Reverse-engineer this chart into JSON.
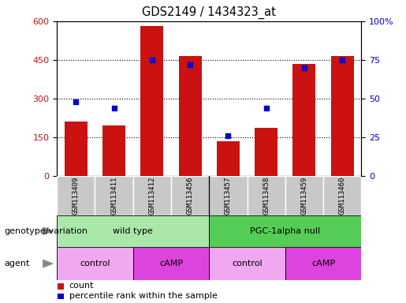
{
  "title": "GDS2149 / 1434323_at",
  "samples": [
    "GSM113409",
    "GSM113411",
    "GSM113412",
    "GSM113456",
    "GSM113457",
    "GSM113458",
    "GSM113459",
    "GSM113460"
  ],
  "counts": [
    210,
    195,
    580,
    465,
    135,
    185,
    435,
    465
  ],
  "percentile_ranks": [
    48,
    44,
    75,
    72,
    26,
    44,
    70,
    75
  ],
  "ylim_left": [
    0,
    600
  ],
  "ylim_right": [
    0,
    100
  ],
  "yticks_left": [
    0,
    150,
    300,
    450,
    600
  ],
  "yticks_right": [
    0,
    25,
    50,
    75,
    100
  ],
  "ytick_labels_right": [
    "0",
    "25",
    "50",
    "75",
    "100%"
  ],
  "bar_color": "#cc1111",
  "dot_color": "#0000cc",
  "tick_label_bg": "#c8c8c8",
  "genotype_groups": [
    {
      "label": "wild type",
      "start": 0,
      "end": 4,
      "color": "#aae8aa"
    },
    {
      "label": "PGC-1alpha null",
      "start": 4,
      "end": 8,
      "color": "#55cc55"
    }
  ],
  "agent_groups": [
    {
      "label": "control",
      "start": 0,
      "end": 2,
      "color": "#f0a8f0"
    },
    {
      "label": "cAMP",
      "start": 2,
      "end": 4,
      "color": "#dd44dd"
    },
    {
      "label": "control",
      "start": 4,
      "end": 6,
      "color": "#f0a8f0"
    },
    {
      "label": "cAMP",
      "start": 6,
      "end": 8,
      "color": "#dd44dd"
    }
  ],
  "legend_count_color": "#cc1111",
  "legend_dot_color": "#0000cc",
  "legend_count_label": "count",
  "legend_dot_label": "percentile rank within the sample",
  "left_label": "genotype/variation",
  "agent_label": "agent",
  "grid_yticks": [
    150,
    300,
    450
  ],
  "hgrid_color": "#000000"
}
